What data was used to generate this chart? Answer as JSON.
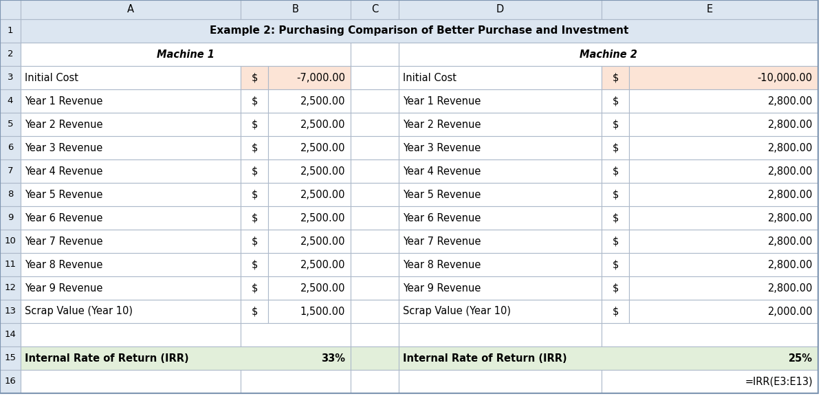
{
  "title": "Example 2: Purchasing Comparison of Better Purchase and Investment",
  "machine1_label": "Machine 1",
  "machine2_label": "Machine 2",
  "left_labels": [
    "Initial Cost",
    "Year 1 Revenue",
    "Year 2 Revenue",
    "Year 3 Revenue",
    "Year 4 Revenue",
    "Year 5 Revenue",
    "Year 6 Revenue",
    "Year 7 Revenue",
    "Year 8 Revenue",
    "Year 9 Revenue",
    "Scrap Value (Year 10)"
  ],
  "right_labels": [
    "Initial Cost",
    "Year 1 Revenue",
    "Year 2 Revenue",
    "Year 3 Revenue",
    "Year 4 Revenue",
    "Year 5 Revenue",
    "Year 6 Revenue",
    "Year 7 Revenue",
    "Year 8 Revenue",
    "Year 9 Revenue",
    "Scrap Value (Year 10)"
  ],
  "left_values": [
    "-7,000.00",
    "2,500.00",
    "2,500.00",
    "2,500.00",
    "2,500.00",
    "2,500.00",
    "2,500.00",
    "2,500.00",
    "2,500.00",
    "2,500.00",
    "1,500.00"
  ],
  "right_values": [
    "-10,000.00",
    "2,800.00",
    "2,800.00",
    "2,800.00",
    "2,800.00",
    "2,800.00",
    "2,800.00",
    "2,800.00",
    "2,800.00",
    "2,800.00",
    "2,000.00"
  ],
  "irr_left_label": "Internal Rate of Return (IRR)",
  "irr_left_value": "33%",
  "irr_right_label": "Internal Rate of Return (IRR)",
  "irr_right_value": "25%",
  "formula_text": "=IRR(E3:E13)",
  "bg_color": "#ffffff",
  "col_header_bg": "#dce6f1",
  "title_row_bg": "#dce6f1",
  "initial_cost_bg": "#fce4d6",
  "irr_row_bg": "#e2efda",
  "grid_color": "#adb9ca",
  "text_color": "#000000",
  "title_fontsize": 11.0,
  "cell_fontsize": 10.5,
  "row_num_fontsize": 9.5,
  "col_header_fontsize": 10.5
}
